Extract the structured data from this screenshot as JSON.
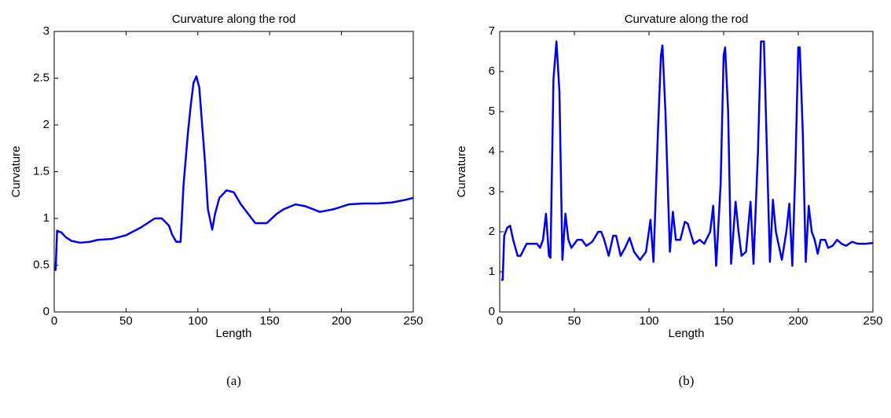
{
  "chart_data": [
    {
      "type": "line",
      "title": "Curvature along the rod",
      "xlabel": "Length",
      "ylabel": "Curvature",
      "caption": "(a)",
      "x": [
        0,
        1,
        2,
        3,
        5,
        8,
        12,
        18,
        25,
        30,
        40,
        50,
        60,
        65,
        70,
        75,
        80,
        82,
        85,
        88,
        90,
        93,
        95,
        97,
        99,
        101,
        103,
        105,
        107,
        110,
        112,
        115,
        120,
        125,
        130,
        140,
        148,
        155,
        160,
        168,
        175,
        185,
        195,
        205,
        215,
        225,
        235,
        245,
        250
      ],
      "series": [
        {
          "color": "#0000ee",
          "values": [
            0.45,
            0.45,
            0.87,
            0.86,
            0.85,
            0.8,
            0.76,
            0.74,
            0.75,
            0.77,
            0.78,
            0.82,
            0.9,
            0.95,
            1.0,
            1.0,
            0.92,
            0.83,
            0.75,
            0.75,
            1.35,
            1.9,
            2.2,
            2.45,
            2.52,
            2.4,
            2.0,
            1.6,
            1.1,
            0.88,
            1.05,
            1.22,
            1.3,
            1.28,
            1.15,
            0.95,
            0.95,
            1.05,
            1.1,
            1.15,
            1.13,
            1.07,
            1.1,
            1.15,
            1.16,
            1.16,
            1.17,
            1.2,
            1.22
          ]
        }
      ],
      "xlim": [
        0,
        250
      ],
      "xticks": [
        0,
        50,
        100,
        150,
        200,
        250
      ],
      "ylim": [
        0,
        3
      ],
      "yticks": [
        0,
        0.5,
        1,
        1.5,
        2,
        2.5,
        3
      ]
    },
    {
      "type": "line",
      "title": "Curvature along the rod",
      "xlabel": "Length",
      "ylabel": "Curvature",
      "caption": "(b)",
      "x": [
        1,
        2,
        3,
        5,
        7,
        9,
        12,
        14,
        18,
        22,
        25,
        27,
        29,
        31,
        33,
        34,
        36,
        38,
        40,
        42,
        44,
        46,
        48,
        52,
        55,
        58,
        62,
        66,
        68,
        70,
        73,
        76,
        78,
        81,
        84,
        87,
        90,
        94,
        98,
        101,
        103,
        106,
        108,
        109,
        111,
        114,
        116,
        118,
        121,
        124,
        126,
        130,
        134,
        137,
        141,
        143,
        145,
        148,
        150,
        151,
        153,
        155,
        158,
        160,
        162,
        165,
        168,
        170,
        173,
        175,
        177,
        179,
        181,
        183,
        185,
        189,
        192,
        194,
        196,
        198,
        200,
        201,
        203,
        205,
        207,
        209,
        211,
        213,
        215,
        218,
        220,
        223,
        226,
        229,
        232,
        236,
        240,
        245,
        250
      ],
      "series": [
        {
          "color": "#0000ee",
          "values": [
            0.8,
            0.8,
            1.9,
            2.1,
            2.15,
            1.8,
            1.4,
            1.4,
            1.7,
            1.7,
            1.7,
            1.6,
            1.8,
            2.45,
            1.4,
            1.35,
            5.8,
            6.75,
            5.5,
            1.3,
            2.45,
            1.8,
            1.6,
            1.8,
            1.8,
            1.65,
            1.75,
            2.0,
            2.0,
            1.8,
            1.4,
            1.9,
            1.9,
            1.4,
            1.6,
            1.85,
            1.5,
            1.3,
            1.5,
            2.3,
            1.25,
            4.5,
            6.4,
            6.65,
            5.0,
            1.5,
            2.5,
            1.8,
            1.8,
            2.25,
            2.2,
            1.7,
            1.8,
            1.7,
            2.0,
            2.65,
            1.15,
            3.2,
            6.4,
            6.6,
            5.0,
            1.2,
            2.75,
            2.0,
            1.4,
            1.5,
            2.75,
            1.2,
            4.0,
            6.75,
            6.75,
            4.0,
            1.25,
            2.8,
            2.0,
            1.3,
            2.0,
            2.7,
            1.15,
            3.5,
            6.6,
            6.6,
            4.5,
            1.25,
            2.65,
            2.0,
            1.8,
            1.45,
            1.8,
            1.8,
            1.6,
            1.65,
            1.8,
            1.7,
            1.65,
            1.75,
            1.7,
            1.7,
            1.72
          ]
        }
      ],
      "xlim": [
        0,
        250
      ],
      "xticks": [
        0,
        50,
        100,
        150,
        200,
        250
      ],
      "ylim": [
        0,
        7
      ],
      "yticks": [
        0,
        1,
        2,
        3,
        4,
        5,
        6,
        7
      ]
    }
  ]
}
